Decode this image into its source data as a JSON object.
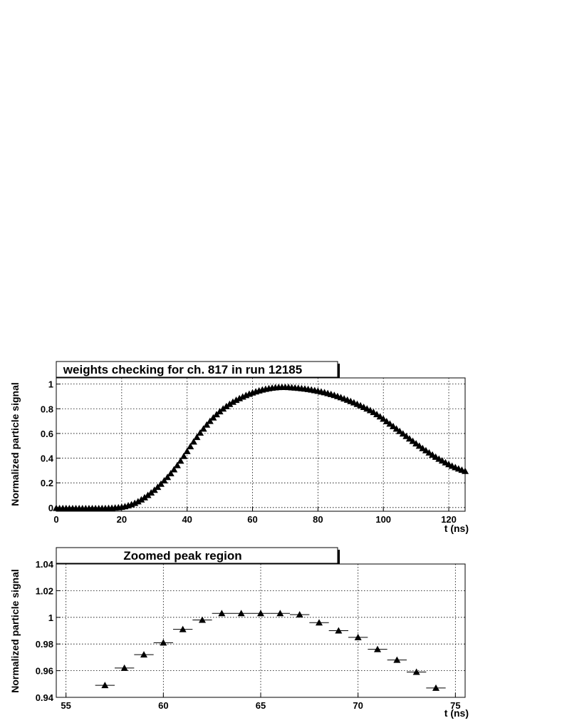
{
  "chart_data": [
    {
      "type": "scatter",
      "title": "weights checking for ch. 817 in run 12185",
      "xlabel": "t (ns)",
      "ylabel": "Normalized particle signal",
      "xlim": [
        0,
        125
      ],
      "ylim": [
        -0.03,
        1.05
      ],
      "xticks": [
        0,
        20,
        40,
        60,
        80,
        100,
        120
      ],
      "yticks": [
        0,
        0.2,
        0.4,
        0.6,
        0.8,
        1
      ],
      "grid": true,
      "marker": "triangle-up",
      "x_start": 0,
      "x_step": 1,
      "values": [
        -0.005,
        -0.006,
        -0.006,
        -0.006,
        -0.007,
        -0.007,
        -0.007,
        -0.007,
        -0.007,
        -0.007,
        -0.007,
        -0.007,
        -0.007,
        -0.007,
        -0.006,
        -0.006,
        -0.005,
        -0.004,
        -0.002,
        0.0,
        0.004,
        0.009,
        0.016,
        0.025,
        0.036,
        0.049,
        0.064,
        0.081,
        0.1,
        0.12,
        0.142,
        0.166,
        0.191,
        0.218,
        0.246,
        0.276,
        0.308,
        0.342,
        0.378,
        0.416,
        0.456,
        0.495,
        0.533,
        0.57,
        0.605,
        0.638,
        0.67,
        0.7,
        0.728,
        0.754,
        0.778,
        0.8,
        0.82,
        0.838,
        0.855,
        0.87,
        0.884,
        0.897,
        0.909,
        0.92,
        0.93,
        0.939,
        0.947,
        0.954,
        0.96,
        0.965,
        0.969,
        0.972,
        0.974,
        0.975,
        0.975,
        0.974,
        0.972,
        0.97,
        0.968,
        0.965,
        0.962,
        0.958,
        0.954,
        0.949,
        0.944,
        0.938,
        0.932,
        0.925,
        0.918,
        0.91,
        0.901,
        0.892,
        0.882,
        0.872,
        0.861,
        0.85,
        0.838,
        0.826,
        0.813,
        0.8,
        0.787,
        0.772,
        0.755,
        0.737,
        0.718,
        0.698,
        0.678,
        0.658,
        0.638,
        0.618,
        0.598,
        0.578,
        0.558,
        0.538,
        0.518,
        0.499,
        0.48,
        0.462,
        0.444,
        0.427,
        0.41,
        0.394,
        0.379,
        0.364,
        0.35,
        0.337,
        0.325,
        0.314,
        0.304,
        0.295
      ]
    },
    {
      "type": "scatter",
      "title": "Zoomed peak region",
      "xlabel": "t (ns)",
      "ylabel": "Normalized particle signal",
      "xlim": [
        54.5,
        75.5
      ],
      "ylim": [
        0.94,
        1.04
      ],
      "xticks": [
        55,
        60,
        65,
        70,
        75
      ],
      "yticks": [
        0.94,
        0.96,
        0.98,
        1,
        1.02,
        1.04
      ],
      "grid": true,
      "marker": "triangle-up",
      "x_half_width": 0.5,
      "x": [
        57,
        58,
        59,
        60,
        61,
        62,
        63,
        64,
        65,
        66,
        67,
        68,
        69,
        70,
        71,
        72,
        73,
        74
      ],
      "values": [
        0.949,
        0.962,
        0.972,
        0.981,
        0.991,
        0.998,
        1.003,
        1.003,
        1.003,
        1.003,
        1.002,
        0.996,
        0.99,
        0.985,
        0.976,
        0.968,
        0.959,
        0.947
      ]
    }
  ]
}
